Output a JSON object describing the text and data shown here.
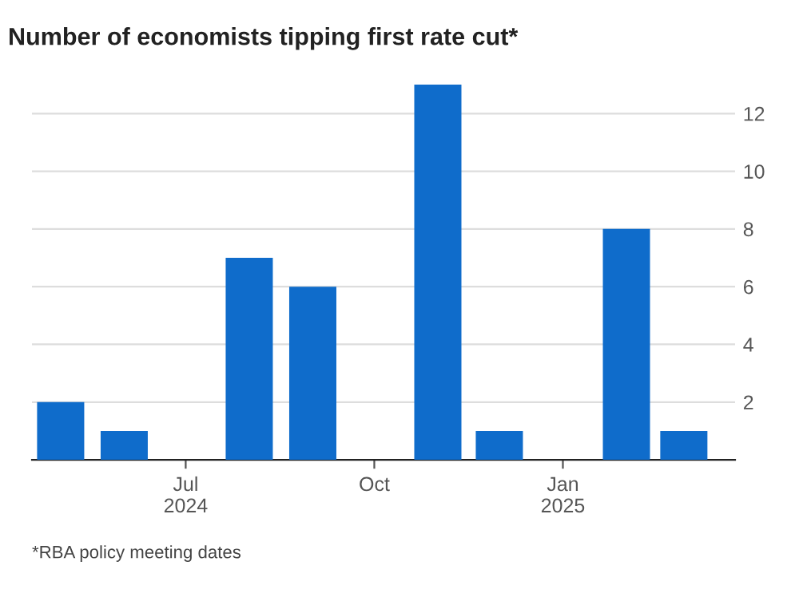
{
  "chart_data": {
    "type": "bar",
    "title": "Number of economists tipping first rate cut*",
    "x": [
      "2024-05",
      "2024-06",
      "2024-07",
      "2024-08",
      "2024-09",
      "2024-10",
      "2024-11",
      "2024-12",
      "2025-01",
      "2025-02",
      "2025-03"
    ],
    "values": [
      2,
      1,
      0,
      7,
      6,
      0,
      13,
      1,
      0,
      8,
      1
    ],
    "color": "#0f6ccb",
    "xlim": [
      "2024-04-17",
      "2025-03-26"
    ],
    "xticks": [
      {
        "value": "2024-07",
        "label": "Jul\n2024"
      },
      {
        "value": "2024-10",
        "label": "Oct"
      },
      {
        "value": "2025-01",
        "label": "Jan\n2025"
      }
    ],
    "ylim": [
      0,
      13
    ],
    "yticks": [
      2,
      4,
      6,
      8,
      10,
      12
    ],
    "grid": "y",
    "annotations": [
      "*RBA policy meeting dates"
    ]
  }
}
